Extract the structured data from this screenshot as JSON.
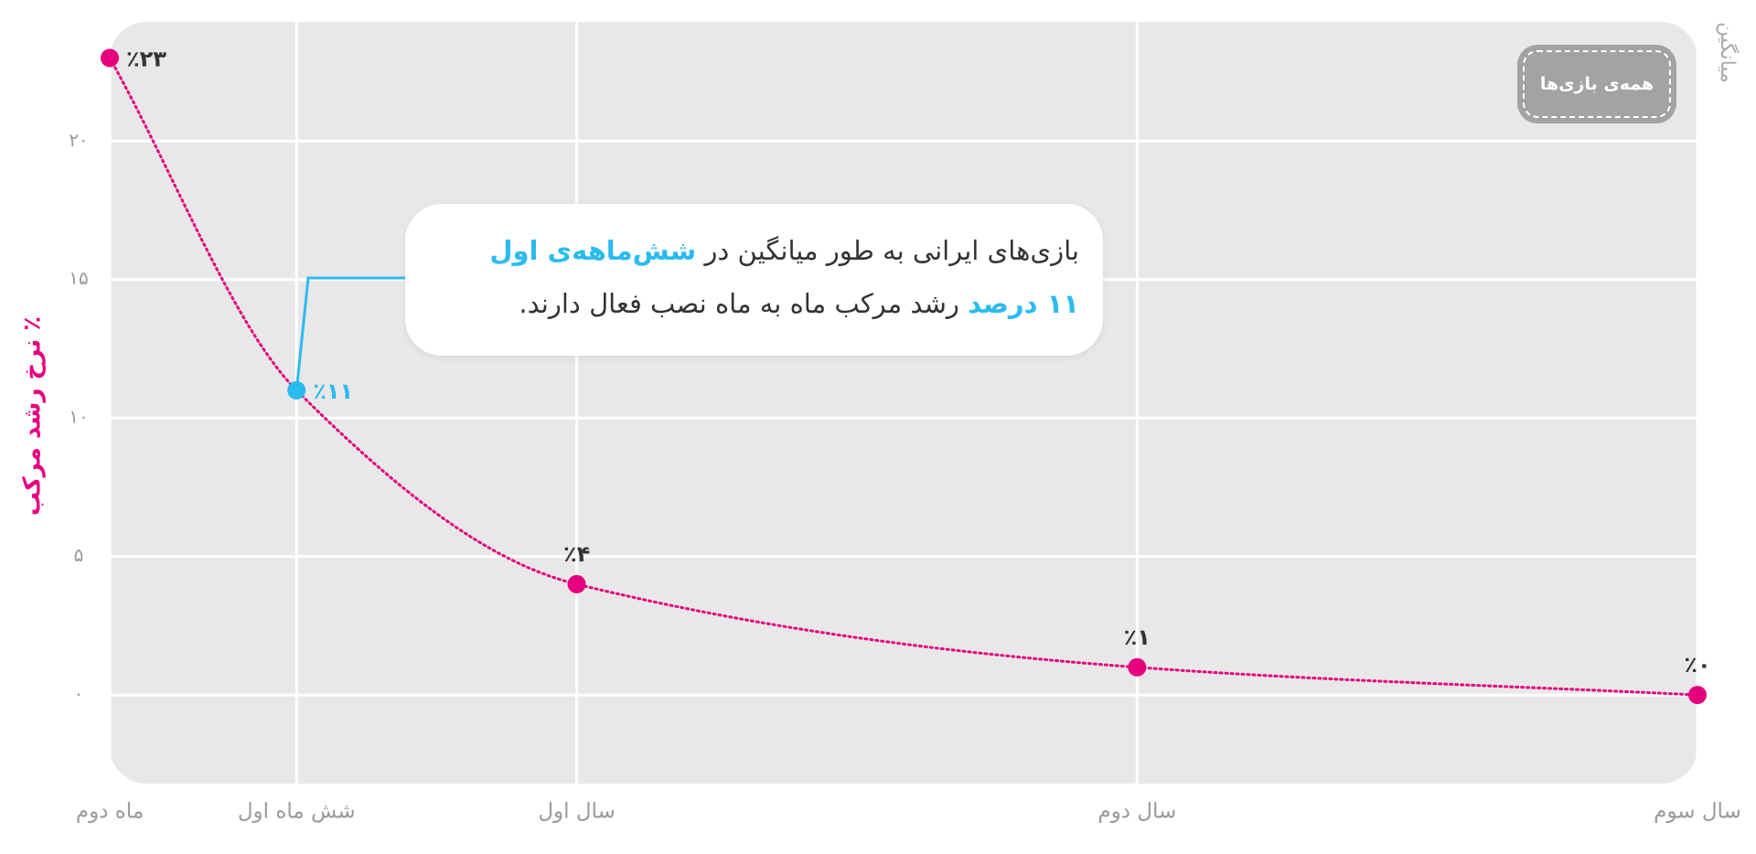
{
  "chart_data": {
    "type": "line",
    "y_label": "٪ نرخ رشد مرکب",
    "side_label": "میانگین",
    "filter_button": "همه‌ی بازی‌ها",
    "x": [
      2,
      6,
      12,
      24,
      36
    ],
    "xlim": [
      2,
      36
    ],
    "xticks": [
      {
        "value": 2,
        "label": "ماه دوم"
      },
      {
        "value": 6,
        "label": "شش ماه اول"
      },
      {
        "value": 12,
        "label": "سال اول"
      },
      {
        "value": 24,
        "label": "سال دوم"
      },
      {
        "value": 36,
        "label": "سال سوم"
      }
    ],
    "values": [
      23,
      11,
      4,
      1,
      0
    ],
    "value_labels": [
      "٪۲۳",
      "٪۱۱",
      "٪۴",
      "٪۱",
      "٪۰"
    ],
    "ylim": [
      -3.2,
      24.3
    ],
    "yticks": [
      {
        "value": 0,
        "label": "۰"
      },
      {
        "value": 5,
        "label": "۵"
      },
      {
        "value": 10,
        "label": "۱۰"
      },
      {
        "value": 15,
        "label": "۱۵"
      },
      {
        "value": 20,
        "label": "۲۰"
      }
    ],
    "color": "#e5007e",
    "point_colors": [
      "#e5007e",
      "#2bbbf0",
      "#e5007e",
      "#e5007e",
      "#e5007e"
    ],
    "grid": true,
    "line_style": "dotted",
    "annotation": {
      "line1": "بازی‌های ایرانی به طور میانگین در",
      "line1_highlight": "شش‌ماهه‌ی اول",
      "line2_highlight": "۱۱ درصد",
      "line2": "رشد مرکب ماه به ماه نصب فعال دارند.",
      "color": "#2bbbf0"
    }
  }
}
